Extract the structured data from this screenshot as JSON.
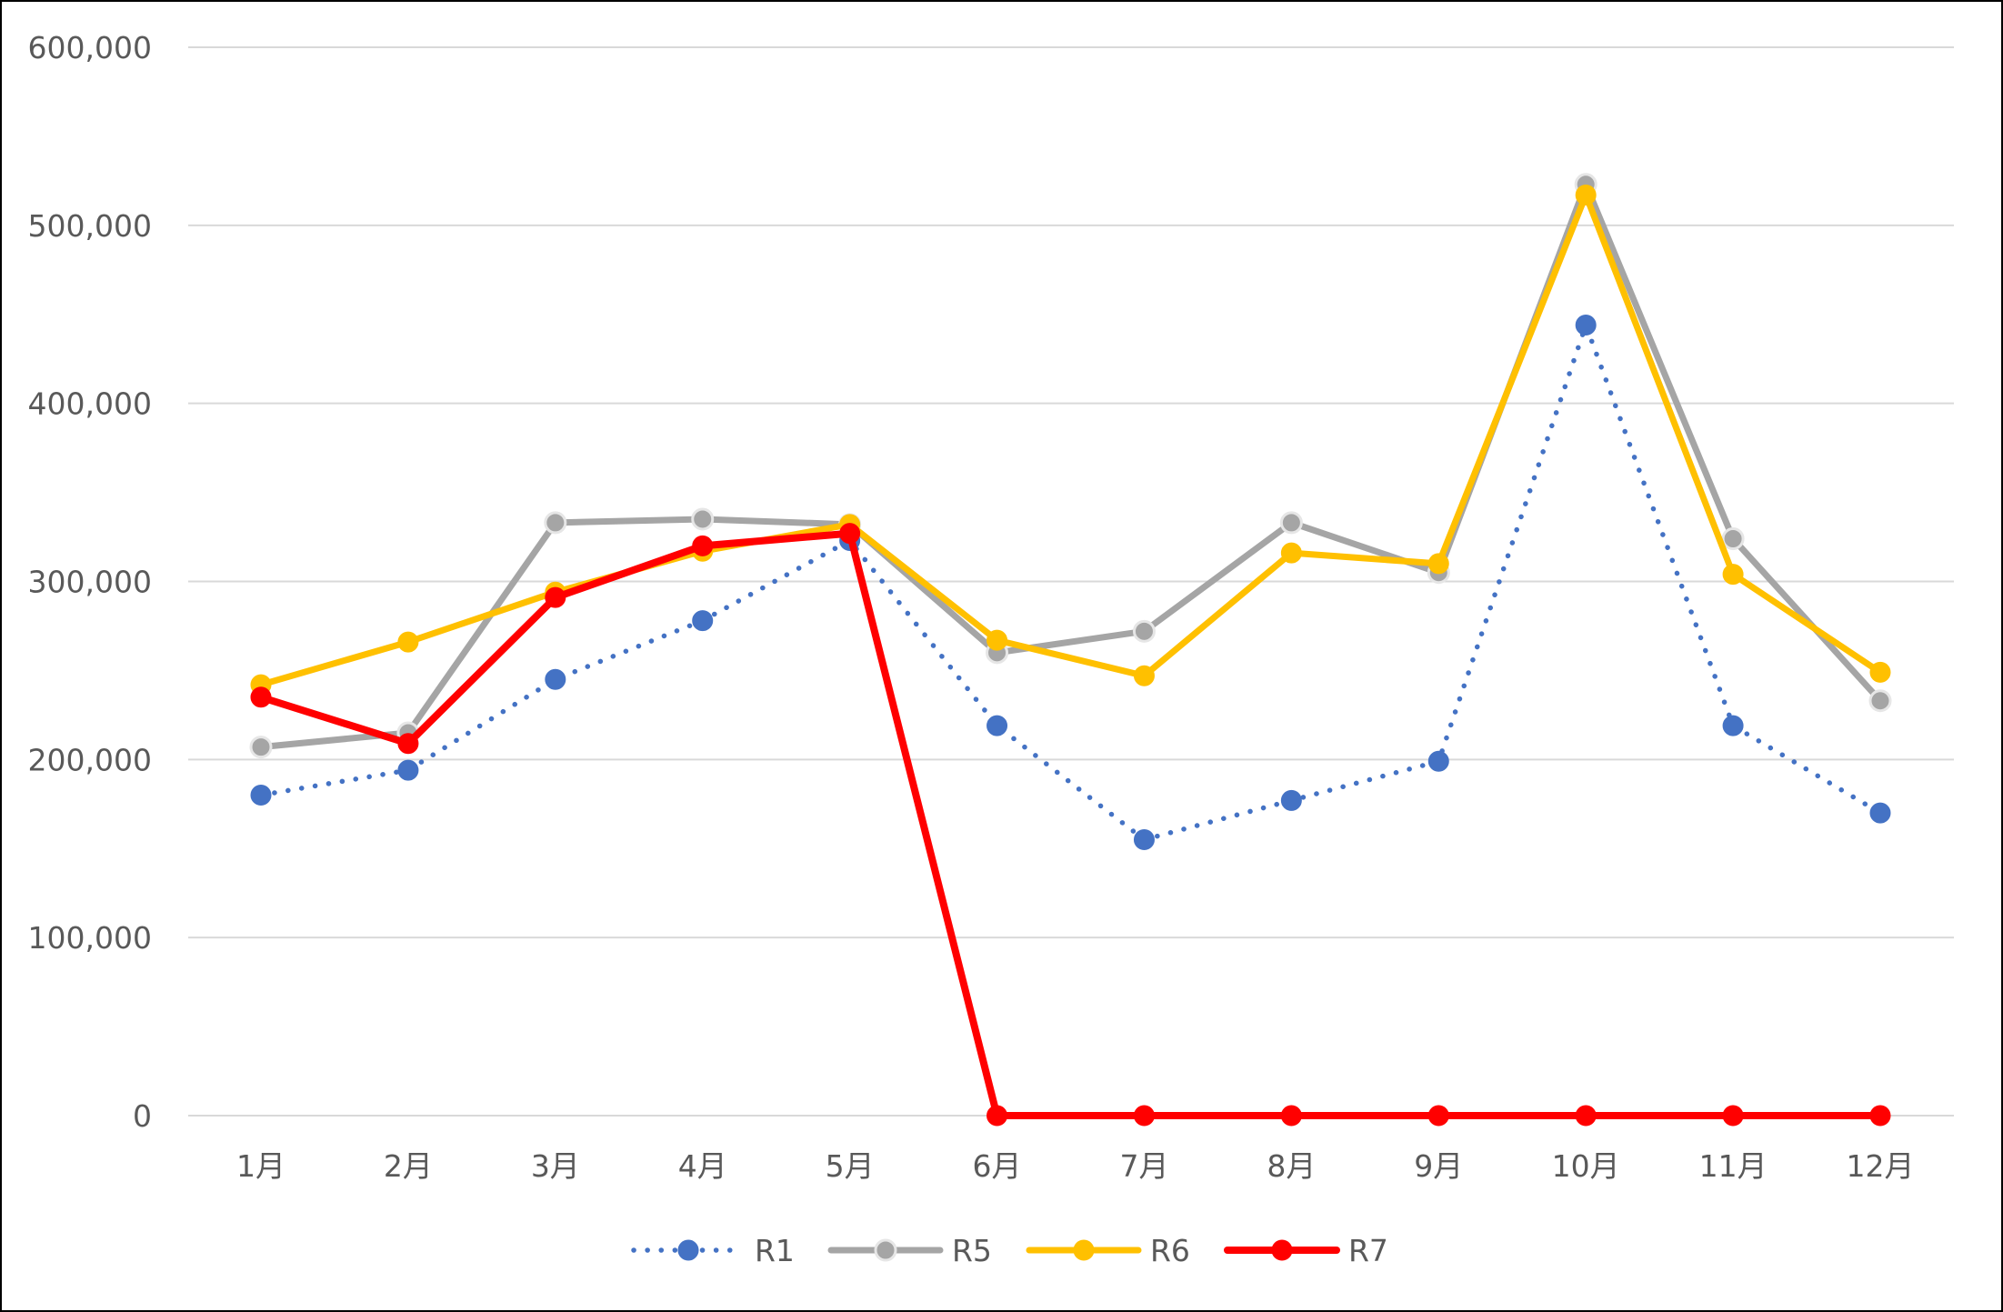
{
  "chart_data": {
    "type": "line",
    "title": "",
    "xlabel": "",
    "ylabel": "",
    "categories": [
      "1月",
      "2月",
      "3月",
      "4月",
      "5月",
      "6月",
      "7月",
      "8月",
      "9月",
      "10月",
      "11月",
      "12月"
    ],
    "ylim": [
      0,
      600000
    ],
    "yticks": [
      0,
      100000,
      200000,
      300000,
      400000,
      500000,
      600000
    ],
    "ytick_labels": [
      "0",
      "100,000",
      "200,000",
      "300,000",
      "400,000",
      "500,000",
      "600,000"
    ],
    "grid": "horizontal",
    "legend_position": "bottom",
    "series": [
      {
        "name": "R1",
        "color": "#4472C4",
        "line_style": "dotted",
        "values": [
          180000,
          194000,
          245000,
          278000,
          323000,
          219000,
          155000,
          177000,
          199000,
          444000,
          219000,
          170000
        ]
      },
      {
        "name": "R5",
        "color": "#A5A5A5",
        "line_style": "solid",
        "values": [
          207000,
          215000,
          333000,
          335000,
          332000,
          260000,
          272000,
          333000,
          305000,
          523000,
          324000,
          233000
        ]
      },
      {
        "name": "R6",
        "color": "#FFC000",
        "line_style": "solid",
        "values": [
          242000,
          266000,
          294000,
          317000,
          332000,
          267000,
          247000,
          316000,
          310000,
          517000,
          304000,
          249000
        ]
      },
      {
        "name": "R7",
        "color": "#FF0000",
        "line_style": "solid",
        "values": [
          235000,
          209000,
          291000,
          320000,
          327000,
          0,
          0,
          0,
          0,
          0,
          0,
          0
        ]
      }
    ]
  }
}
